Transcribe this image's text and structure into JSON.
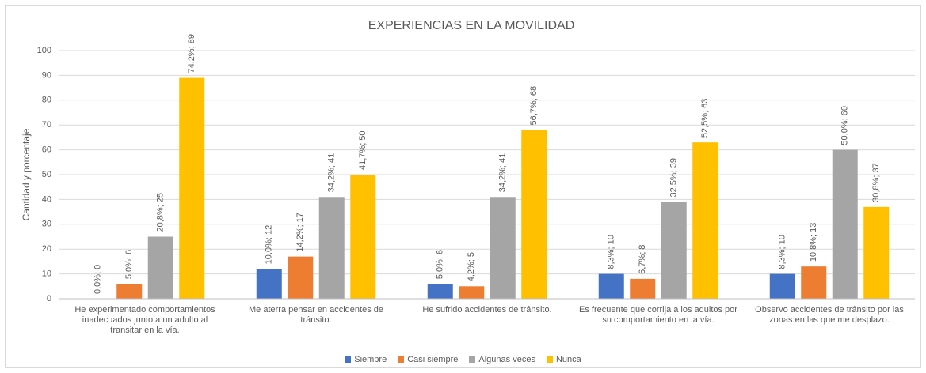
{
  "chart_data": {
    "type": "bar",
    "title": "EXPERIENCIAS EN LA MOVILIDAD",
    "y_label": "Cantidad y porcentaje",
    "categories": [
      "He experimentado comportamientos inadecuados junto a un adulto al transitar en la vía.",
      "Me aterra pensar en accidentes de tránsito.",
      "He sufrido accidentes de tránsito.",
      "Es frecuente que corrija a los adultos por su comportamiento en la vía.",
      "Observo accidentes de tránsito por las zonas en las que me desplazo."
    ],
    "series": [
      {
        "name": "Siempre",
        "color": "#4472c4",
        "values": [
          0,
          12,
          6,
          10,
          10
        ],
        "value_labels": [
          "0,0%; 0",
          "10,0%; 12",
          "5,0%; 6",
          "8,3%; 10",
          "8,3%; 10"
        ]
      },
      {
        "name": "Casi siempre",
        "color": "#ed7d31",
        "values": [
          6,
          17,
          5,
          8,
          13
        ],
        "value_labels": [
          "5,0%; 6",
          "14,2%; 17",
          "4,2%; 5",
          "6,7%; 8",
          "10,8%; 13"
        ]
      },
      {
        "name": "Algunas veces",
        "color": "#a5a5a5",
        "values": [
          25,
          41,
          41,
          39,
          60
        ],
        "value_labels": [
          "20,8%; 25",
          "34,2%; 41",
          "34,2%; 41",
          "32,5%; 39",
          "50,0%; 60"
        ]
      },
      {
        "name": "Nunca",
        "color": "#ffc000",
        "values": [
          89,
          50,
          68,
          63,
          37
        ],
        "value_labels": [
          "74,2%; 89",
          "41,7%; 50",
          "56,7%; 68",
          "52,5%; 63",
          "30,8%; 37"
        ]
      }
    ],
    "ylim": [
      0,
      100
    ],
    "yticks": [
      0,
      10,
      20,
      30,
      40,
      50,
      60,
      70,
      80,
      90,
      100
    ],
    "grid": true,
    "legend": "bottom"
  }
}
